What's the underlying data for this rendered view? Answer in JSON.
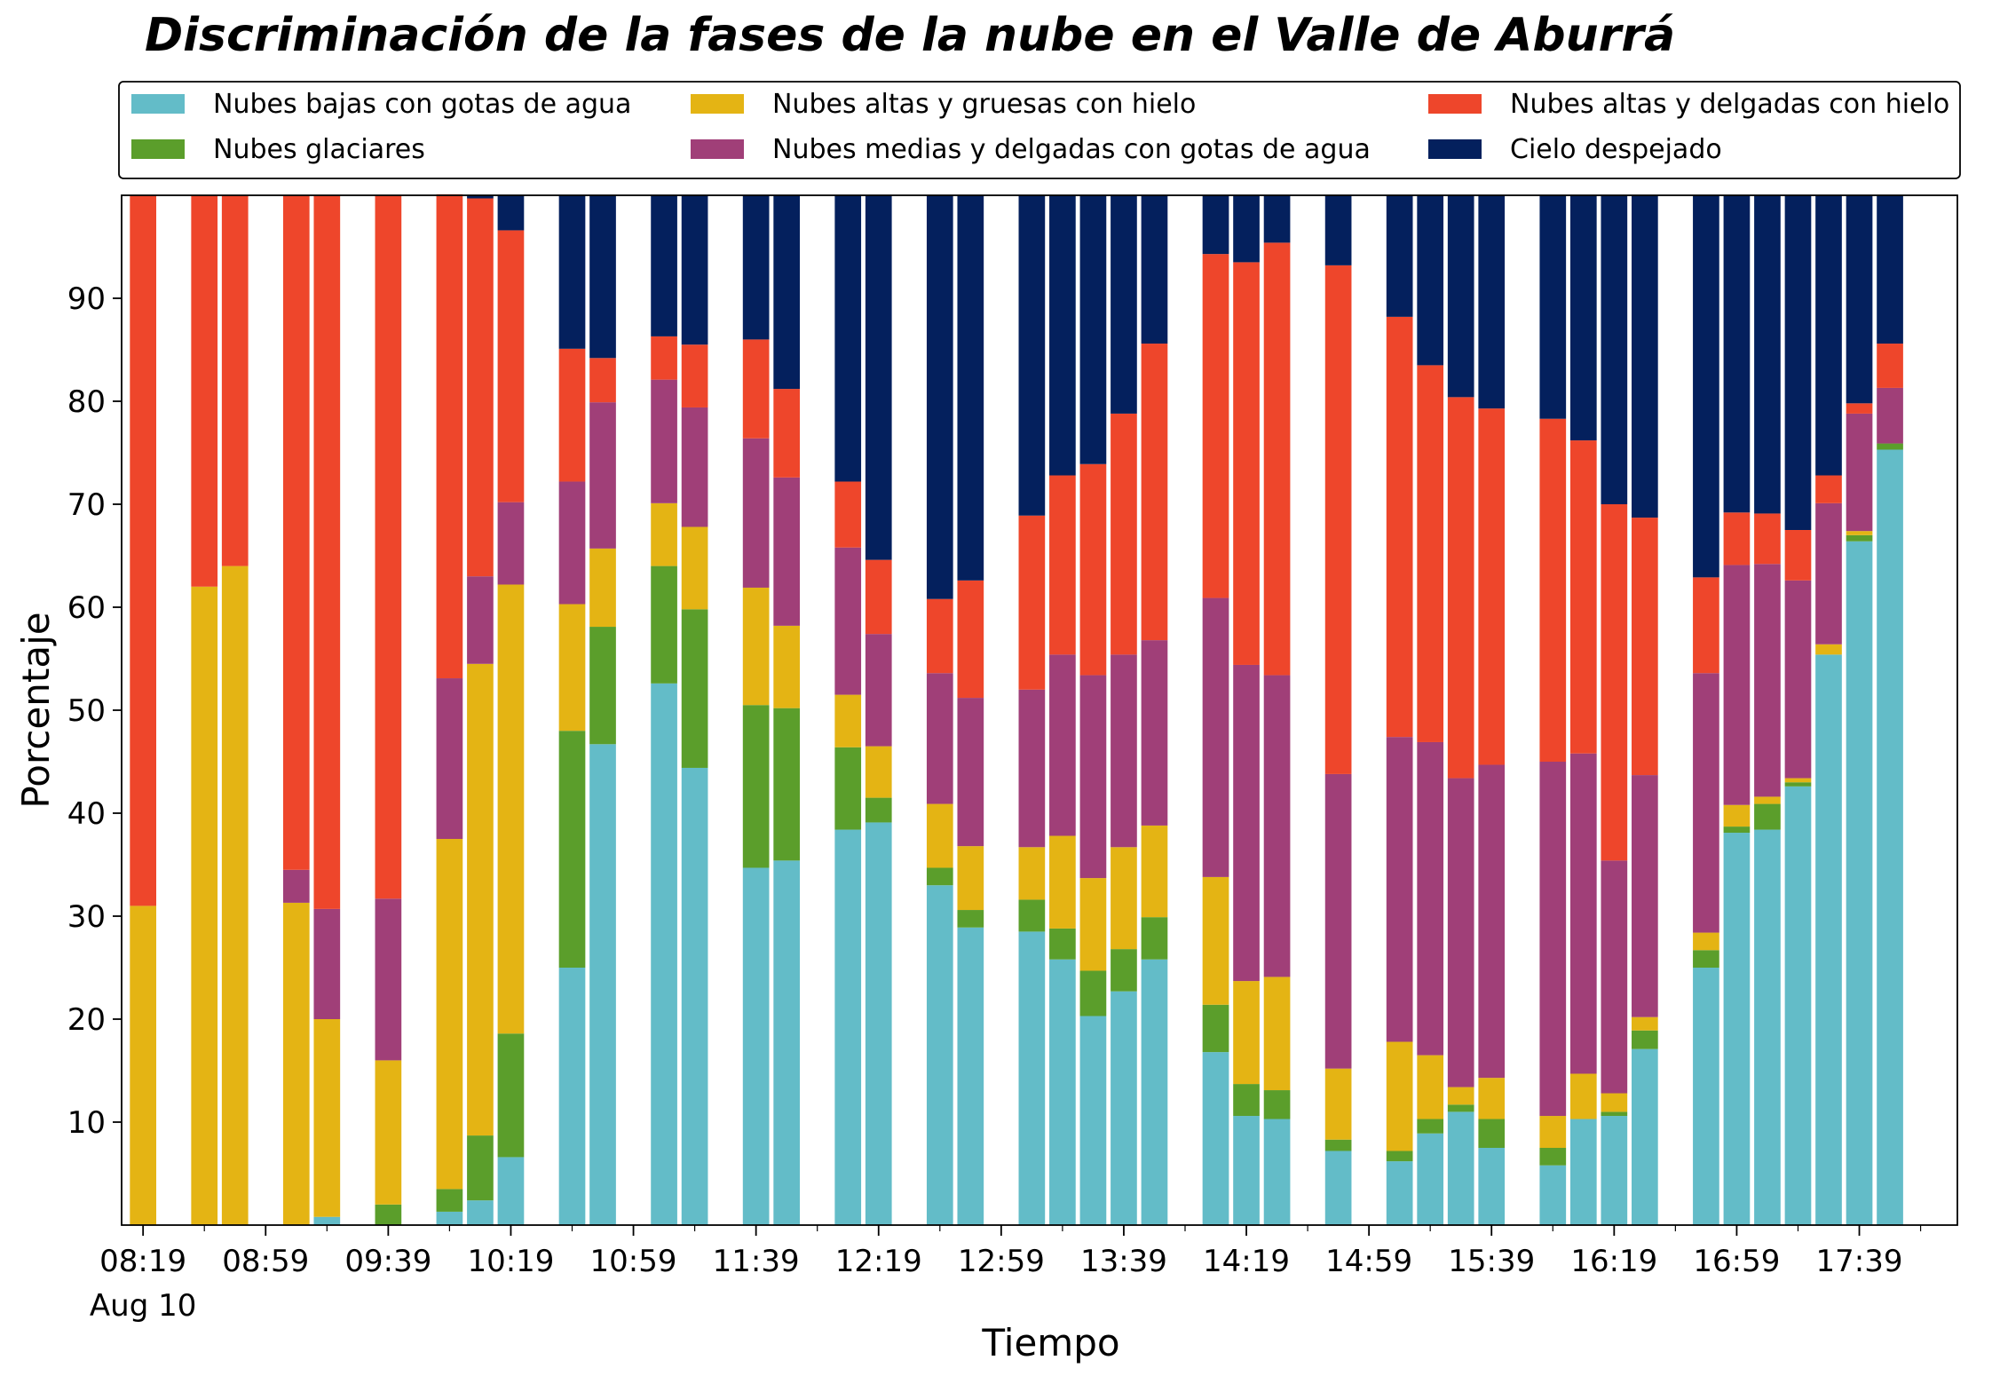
{
  "chart_data": {
    "type": "bar",
    "stacked": true,
    "title": "Discriminación de la fases de la nube en el Valle de Aburrá",
    "xlabel": "Tiempo",
    "ylabel": "Porcentaje",
    "ylim": [
      0,
      100
    ],
    "yticks": [
      10,
      20,
      30,
      40,
      50,
      60,
      70,
      80,
      90
    ],
    "xlim_minutes": [
      "08:12",
      "18:11"
    ],
    "xtick_labels": [
      "08:19",
      "08:59",
      "09:39",
      "10:19",
      "10:59",
      "11:39",
      "12:19",
      "12:59",
      "13:39",
      "14:19",
      "14:59",
      "15:39",
      "16:19",
      "16:59",
      "17:39"
    ],
    "xtick_sublabel": "Aug 10",
    "legend_position": "top",
    "grid": false,
    "series": [
      {
        "name": "Nubes bajas con gotas de agua",
        "color": "#63BCC8"
      },
      {
        "name": "Nubes glaciares",
        "color": "#5B9E2B"
      },
      {
        "name": "Nubes altas y gruesas con hielo",
        "color": "#E4B414"
      },
      {
        "name": "Nubes medias y delgadas con gotas de agua",
        "color": "#A03F78"
      },
      {
        "name": "Nubes altas y delgadas con hielo",
        "color": "#EE462B"
      },
      {
        "name": "Cielo despejado",
        "color": "#04205D"
      }
    ],
    "times": [
      "08:19",
      "08:39",
      "08:49",
      "09:09",
      "09:19",
      "09:39",
      "09:59",
      "10:09",
      "10:19",
      "10:39",
      "10:49",
      "11:09",
      "11:19",
      "11:39",
      "11:49",
      "12:09",
      "12:19",
      "12:39",
      "12:49",
      "13:09",
      "13:19",
      "13:29",
      "13:39",
      "13:49",
      "14:09",
      "14:19",
      "14:29",
      "14:49",
      "15:09",
      "15:19",
      "15:29",
      "15:39",
      "15:59",
      "16:09",
      "16:19",
      "16:29",
      "16:49",
      "16:59",
      "17:09",
      "17:19",
      "17:29",
      "17:39",
      "17:49"
    ],
    "values": [
      [
        0,
        0,
        31,
        0,
        69,
        0
      ],
      [
        0,
        0,
        62,
        0,
        38,
        0
      ],
      [
        0,
        0,
        64,
        0,
        36,
        0
      ],
      [
        0,
        0,
        31.3,
        3.2,
        65.5,
        0
      ],
      [
        0.8,
        0,
        19.2,
        10.7,
        69.3,
        0
      ],
      [
        0,
        2,
        14,
        15.7,
        68.3,
        0
      ],
      [
        1.3,
        2.2,
        34,
        15.6,
        47,
        0
      ],
      [
        2.4,
        6.3,
        45.8,
        8.5,
        36.7,
        0.3
      ],
      [
        6.6,
        12,
        43.6,
        8,
        26.4,
        3.4
      ],
      [
        25,
        23,
        12.3,
        11.9,
        12.9,
        14.9
      ],
      [
        46.7,
        11.4,
        7.6,
        14.2,
        4.3,
        15.8
      ],
      [
        52.6,
        11.4,
        6.1,
        12,
        4.2,
        13.7
      ],
      [
        44.4,
        15.4,
        8,
        11.6,
        6.1,
        14.5
      ],
      [
        34.7,
        15.8,
        11.4,
        14.5,
        9.6,
        14
      ],
      [
        35.4,
        14.8,
        8,
        14.4,
        8.6,
        18.8
      ],
      [
        38.4,
        8,
        5.1,
        14.3,
        6.4,
        27.8
      ],
      [
        39.1,
        2.4,
        5,
        10.9,
        7.2,
        35.4
      ],
      [
        33,
        1.7,
        6.2,
        12.7,
        7.2,
        39.2
      ],
      [
        28.9,
        1.7,
        6.2,
        14.4,
        11.4,
        37.4
      ],
      [
        28.5,
        3.1,
        5.1,
        15.3,
        16.9,
        31.1
      ],
      [
        25.8,
        3,
        9,
        17.6,
        17.4,
        27.2
      ],
      [
        20.3,
        4.4,
        9,
        19.7,
        20.5,
        26.1
      ],
      [
        22.7,
        4.1,
        9.9,
        18.7,
        23.4,
        21.2
      ],
      [
        25.8,
        4.1,
        8.9,
        18,
        28.8,
        14.4
      ],
      [
        16.8,
        4.6,
        12.4,
        27.1,
        33.4,
        5.7
      ],
      [
        10.6,
        3.1,
        10,
        30.7,
        39.1,
        6.5
      ],
      [
        10.3,
        2.8,
        11,
        29.3,
        42,
        4.6
      ],
      [
        7.2,
        1.1,
        6.9,
        28.6,
        49.4,
        6.8
      ],
      [
        6.2,
        1,
        10.6,
        29.6,
        40.8,
        11.8
      ],
      [
        8.9,
        1.4,
        6.2,
        30.4,
        36.6,
        16.5
      ],
      [
        11,
        0.7,
        1.7,
        30,
        37,
        19.6
      ],
      [
        7.5,
        2.8,
        4,
        30.4,
        34.6,
        20.7
      ],
      [
        5.8,
        1.7,
        3.1,
        34.4,
        33.3,
        21.7
      ],
      [
        10.3,
        0,
        4.4,
        31.1,
        30.4,
        23.8
      ],
      [
        10.6,
        0.4,
        1.8,
        22.6,
        34.6,
        30
      ],
      [
        17.1,
        1.8,
        1.3,
        23.5,
        25,
        31.3
      ],
      [
        25,
        1.7,
        1.7,
        25.2,
        9.3,
        37.1
      ],
      [
        38.1,
        0.6,
        2.1,
        23.3,
        5.1,
        30.8
      ],
      [
        38.4,
        2.5,
        0.7,
        22.6,
        4.9,
        30.9
      ],
      [
        42.6,
        0.4,
        0.4,
        19.2,
        4.9,
        32.5
      ],
      [
        55.4,
        0,
        1,
        13.7,
        2.7,
        27.2
      ],
      [
        66.4,
        0.6,
        0.4,
        11.4,
        1,
        20.2
      ],
      [
        75.3,
        0.6,
        0,
        5.4,
        4.3,
        14.4
      ]
    ]
  }
}
